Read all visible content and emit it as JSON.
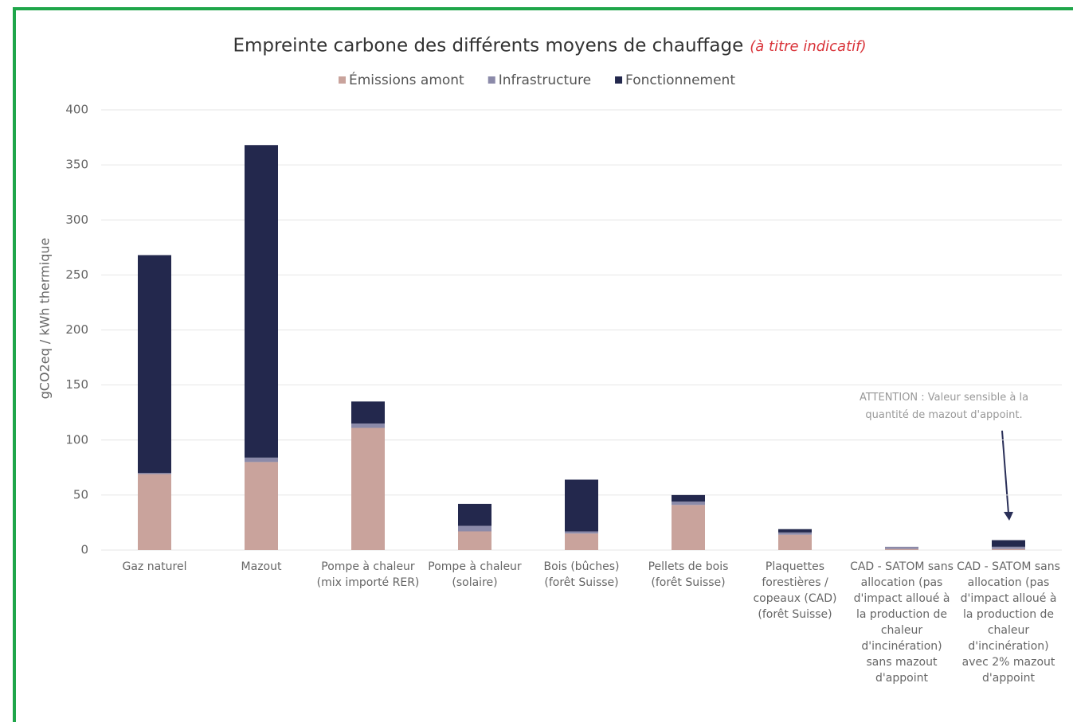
{
  "chart_data": {
    "type": "stacked_bar",
    "title": "Empreinte carbone des différents moyens de chauffage",
    "subtitle": "(à titre indicatif)",
    "y_label": "gCO2eq / kWh thermique",
    "annotation": "ATTENTION : Valeur sensible à la quantité de mazout d'appoint.",
    "categories": [
      "Gaz naturel",
      "Mazout",
      "Pompe à chaleur (mix importé RER)",
      "Pompe à chaleur (solaire)",
      "Bois (bûches) (forêt Suisse)",
      "Pellets de bois (forêt Suisse)",
      "Plaquettes forestières / copeaux (CAD) (forêt Suisse)",
      "CAD - SATOM sans allocation (pas d'impact alloué à la production de chaleur d'incinération) sans mazout d'appoint",
      "CAD - SATOM sans allocation (pas d'impact alloué à la production de chaleur d'incinération) avec 2% mazout d'appoint"
    ],
    "series": [
      {
        "name": "Émissions amont",
        "color": "#c9a39c",
        "values": [
          69,
          80,
          111,
          17,
          15,
          41,
          14,
          1,
          1
        ]
      },
      {
        "name": "Infrastructure",
        "color": "#8b8aa9",
        "values": [
          1,
          4,
          4,
          5,
          2,
          3,
          2,
          2,
          2
        ]
      },
      {
        "name": "Fonctionnement",
        "color": "#23284d",
        "values": [
          198,
          284,
          20,
          20,
          47,
          6,
          3,
          0,
          6
        ]
      }
    ],
    "ylim": [
      0,
      400
    ],
    "yticks": [
      0,
      50,
      100,
      150,
      200,
      250,
      300,
      350,
      400
    ],
    "grid": true
  }
}
